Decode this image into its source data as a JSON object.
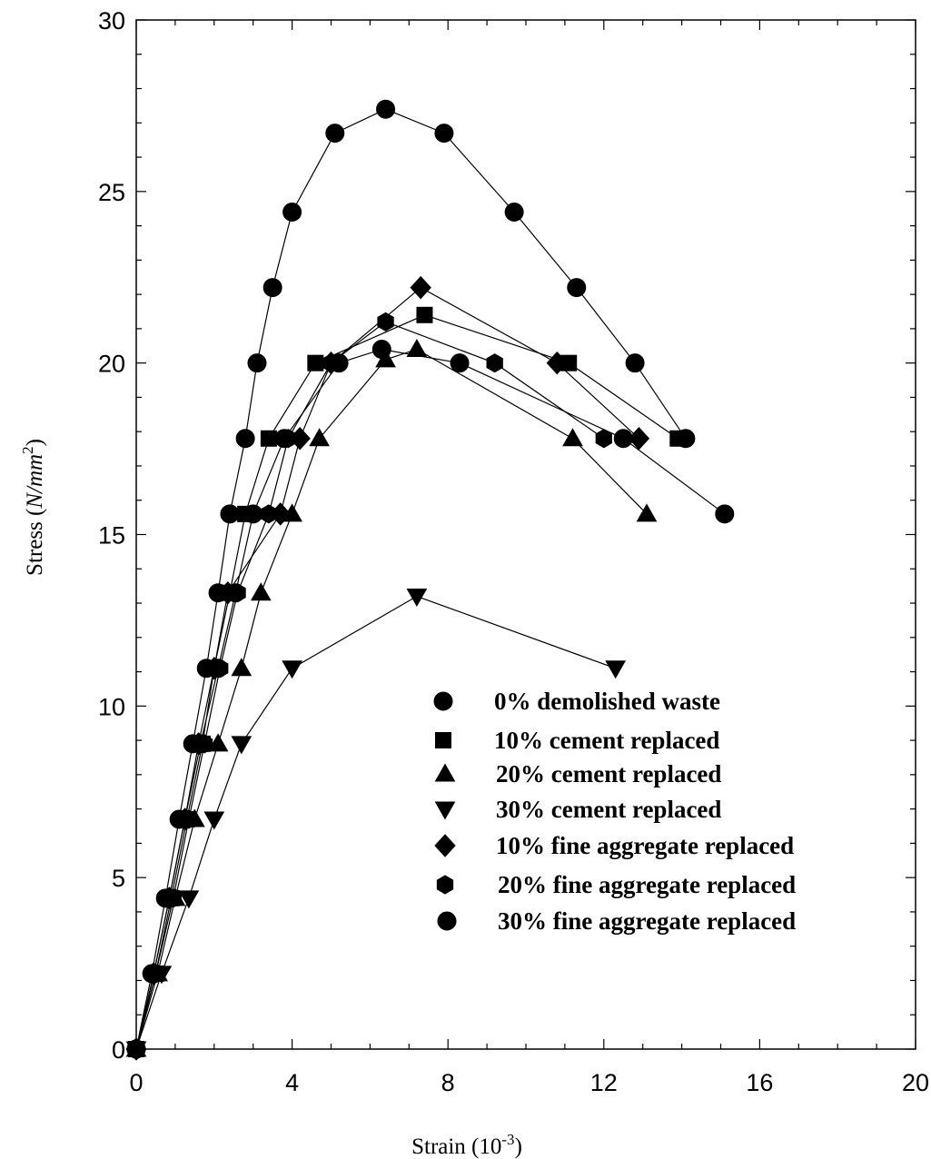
{
  "chart_data": {
    "type": "line",
    "xlabel": "Strain (10",
    "xlabel_sup": "-3",
    "xlabel_close": ")",
    "ylabel": "Stress (",
    "ylabel_unit": "N/mm",
    "ylabel_sup": "2",
    "ylabel_close": ")",
    "xlim": [
      0,
      20
    ],
    "ylim": [
      0,
      30
    ],
    "xticks": [
      "0",
      "4",
      "8",
      "12",
      "16",
      "20"
    ],
    "yticks": [
      "0",
      "5",
      "10",
      "15",
      "20",
      "25",
      "30"
    ],
    "grid": false,
    "legend_position": "lower-right",
    "series": [
      {
        "name": "0% demolished waste",
        "marker": "circle",
        "points": [
          [
            0,
            0
          ],
          [
            0.4,
            2.2
          ],
          [
            0.75,
            4.4
          ],
          [
            1.1,
            6.7
          ],
          [
            1.45,
            8.9
          ],
          [
            1.8,
            11.1
          ],
          [
            2.1,
            13.3
          ],
          [
            2.4,
            15.6
          ],
          [
            2.8,
            17.8
          ],
          [
            3.1,
            20.0
          ],
          [
            3.5,
            22.2
          ],
          [
            4.0,
            24.4
          ],
          [
            5.1,
            26.7
          ],
          [
            6.4,
            27.4
          ],
          [
            7.9,
            26.7
          ],
          [
            9.7,
            24.4
          ],
          [
            11.3,
            22.2
          ],
          [
            12.8,
            20.0
          ],
          [
            14.1,
            17.8
          ]
        ]
      },
      {
        "name": "10% cement replaced",
        "marker": "square",
        "points": [
          [
            0,
            0
          ],
          [
            0.5,
            2.2
          ],
          [
            0.9,
            4.4
          ],
          [
            1.3,
            6.7
          ],
          [
            1.7,
            8.9
          ],
          [
            2.0,
            11.1
          ],
          [
            2.4,
            13.3
          ],
          [
            2.8,
            15.6
          ],
          [
            3.4,
            17.8
          ],
          [
            4.6,
            20.0
          ],
          [
            7.4,
            21.4
          ],
          [
            11.1,
            20.0
          ],
          [
            13.9,
            17.8
          ]
        ]
      },
      {
        "name": "20% cement replaced",
        "marker": "triangle-up",
        "points": [
          [
            0,
            0
          ],
          [
            0.55,
            2.2
          ],
          [
            1.0,
            4.4
          ],
          [
            1.5,
            6.7
          ],
          [
            2.1,
            8.9
          ],
          [
            2.7,
            11.1
          ],
          [
            3.2,
            13.3
          ],
          [
            4.0,
            15.6
          ],
          [
            4.7,
            17.8
          ],
          [
            6.4,
            20.1
          ],
          [
            7.2,
            20.4
          ],
          [
            11.2,
            17.8
          ],
          [
            13.1,
            15.6
          ]
        ]
      },
      {
        "name": "30% cement replaced",
        "marker": "triangle-down",
        "points": [
          [
            0,
            0
          ],
          [
            0.65,
            2.2
          ],
          [
            1.35,
            4.4
          ],
          [
            2.0,
            6.7
          ],
          [
            2.7,
            8.9
          ],
          [
            4.0,
            11.1
          ],
          [
            7.2,
            13.2
          ],
          [
            12.3,
            11.1
          ]
        ]
      },
      {
        "name": "10% fine aggregate replaced",
        "marker": "diamond",
        "points": [
          [
            0,
            0
          ],
          [
            0.45,
            2.2
          ],
          [
            0.85,
            4.4
          ],
          [
            1.25,
            6.7
          ],
          [
            1.6,
            8.9
          ],
          [
            2.0,
            11.1
          ],
          [
            2.35,
            13.3
          ],
          [
            3.7,
            15.6
          ],
          [
            4.2,
            17.8
          ],
          [
            5.0,
            20.0
          ],
          [
            7.3,
            22.2
          ],
          [
            10.8,
            20.0
          ],
          [
            12.9,
            17.8
          ]
        ]
      },
      {
        "name": "20% fine aggregate replaced",
        "marker": "hexagon",
        "points": [
          [
            0,
            0
          ],
          [
            0.5,
            2.2
          ],
          [
            0.95,
            4.4
          ],
          [
            1.35,
            6.7
          ],
          [
            1.75,
            8.9
          ],
          [
            2.15,
            11.1
          ],
          [
            2.6,
            13.3
          ],
          [
            3.4,
            15.6
          ],
          [
            3.9,
            17.8
          ],
          [
            5.0,
            20.0
          ],
          [
            6.4,
            21.2
          ],
          [
            9.2,
            20.0
          ],
          [
            12.0,
            17.8
          ]
        ]
      },
      {
        "name": "30% fine aggregate replaced",
        "marker": "circle",
        "points": [
          [
            0,
            0
          ],
          [
            0.45,
            2.2
          ],
          [
            0.85,
            4.4
          ],
          [
            1.25,
            6.7
          ],
          [
            1.65,
            8.9
          ],
          [
            2.1,
            11.1
          ],
          [
            2.55,
            13.3
          ],
          [
            3.0,
            15.6
          ],
          [
            3.8,
            17.8
          ],
          [
            5.2,
            20.0
          ],
          [
            6.3,
            20.4
          ],
          [
            8.3,
            20.0
          ],
          [
            12.5,
            17.8
          ],
          [
            15.1,
            15.6
          ]
        ]
      }
    ]
  }
}
